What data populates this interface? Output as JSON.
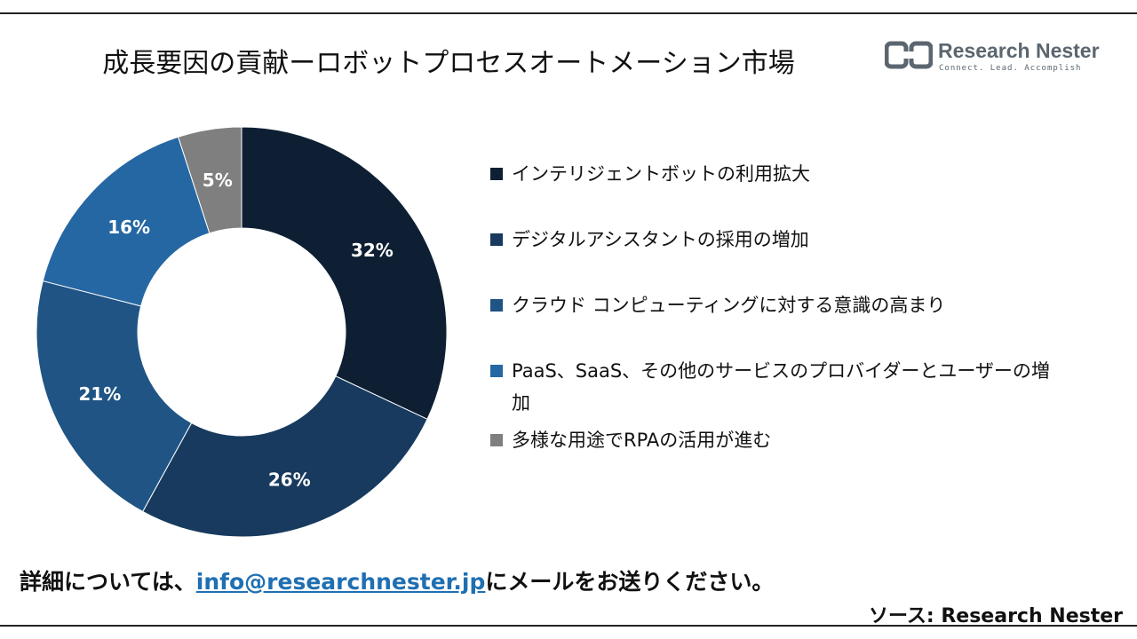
{
  "title": "成長要因の貢献ーロボットプロセスオートメーション市場",
  "logo": {
    "name": "Research Nester",
    "tagline": "Connect. Lead. Accomplish"
  },
  "footer": {
    "prefix": "詳細については、",
    "email": "info@researchnester.jp",
    "suffix": "にメールをお送りください。"
  },
  "source": "ソース: Research Nester",
  "chart_data": {
    "type": "pie",
    "categories": [
      "インテリジェントボットの利用拡大",
      "デジタルアシスタントの採用の増加",
      "クラウド コンピューティングに対する意識の高まり",
      "PaaS、SaaS、その他のサービスのプロバイダーとユーザーの増加",
      "多様な用途でRPAの活用が進む"
    ],
    "values": [
      32,
      26,
      21,
      16,
      5
    ],
    "labels": [
      "32%",
      "26%",
      "21%",
      "16%",
      "5%"
    ],
    "colors": [
      "#0e1f33",
      "#173a5e",
      "#1f5484",
      "#2567a3",
      "#7f7f7f"
    ],
    "donut": true,
    "legend_position": "right"
  }
}
